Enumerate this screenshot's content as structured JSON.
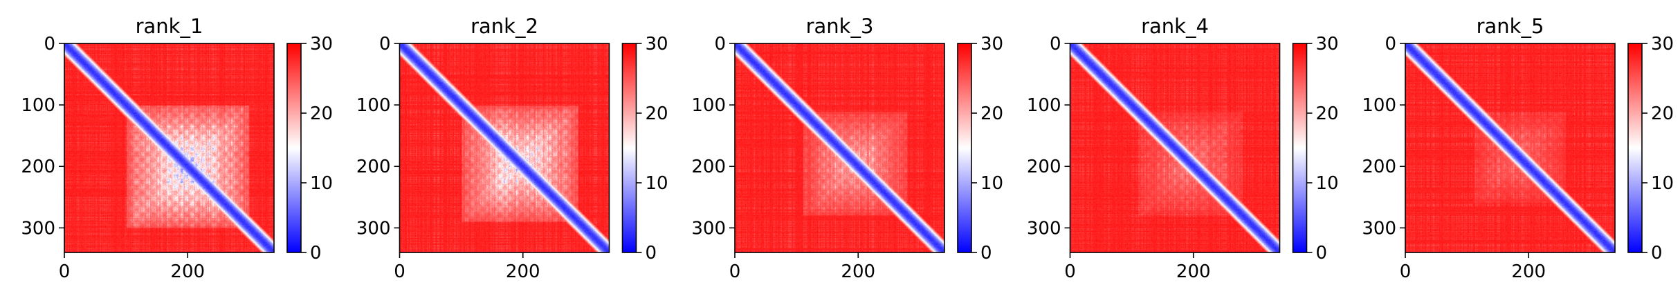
{
  "figure": {
    "colormap": "bwr",
    "colors": {
      "low": "#0000ff",
      "mid": "#ffffff",
      "high": "#ff0000",
      "axes": "#000000"
    }
  },
  "chart_data": [
    {
      "type": "heatmap",
      "title": "rank_1",
      "xlabel": "",
      "ylabel": "",
      "matrix_size": 340,
      "xlim": [
        0,
        340
      ],
      "ylim": [
        340,
        0
      ],
      "x_ticks": [
        0,
        200
      ],
      "y_ticks": [
        0,
        100,
        200,
        300
      ],
      "colorbar": {
        "range": [
          0,
          30
        ],
        "ticks": [
          0,
          10,
          20,
          30
        ]
      },
      "diagonal_value": 2,
      "background_value": 29,
      "blue_region": {
        "x_range": [
          100,
          300
        ],
        "y_range": [
          100,
          300
        ],
        "strength": 1.0
      }
    },
    {
      "type": "heatmap",
      "title": "rank_2",
      "xlabel": "",
      "ylabel": "",
      "matrix_size": 340,
      "xlim": [
        0,
        340
      ],
      "ylim": [
        340,
        0
      ],
      "x_ticks": [
        0,
        200
      ],
      "y_ticks": [
        0,
        100,
        200,
        300
      ],
      "colorbar": {
        "range": [
          0,
          30
        ],
        "ticks": [
          0,
          10,
          20,
          30
        ]
      },
      "diagonal_value": 2,
      "background_value": 29,
      "blue_region": {
        "x_range": [
          100,
          290
        ],
        "y_range": [
          100,
          290
        ],
        "strength": 0.9
      }
    },
    {
      "type": "heatmap",
      "title": "rank_3",
      "xlabel": "",
      "ylabel": "",
      "matrix_size": 340,
      "xlim": [
        0,
        340
      ],
      "ylim": [
        340,
        0
      ],
      "x_ticks": [
        0,
        200
      ],
      "y_ticks": [
        0,
        100,
        200,
        300
      ],
      "colorbar": {
        "range": [
          0,
          30
        ],
        "ticks": [
          0,
          10,
          20,
          30
        ]
      },
      "diagonal_value": 2,
      "background_value": 29,
      "blue_region": {
        "x_range": [
          110,
          280
        ],
        "y_range": [
          110,
          280
        ],
        "strength": 0.55
      }
    },
    {
      "type": "heatmap",
      "title": "rank_4",
      "xlabel": "",
      "ylabel": "",
      "matrix_size": 340,
      "xlim": [
        0,
        340
      ],
      "ylim": [
        340,
        0
      ],
      "x_ticks": [
        0,
        200
      ],
      "y_ticks": [
        0,
        100,
        200,
        300
      ],
      "colorbar": {
        "range": [
          0,
          30
        ],
        "ticks": [
          0,
          10,
          20,
          30
        ]
      },
      "diagonal_value": 2,
      "background_value": 29,
      "blue_region": {
        "x_range": [
          110,
          280
        ],
        "y_range": [
          110,
          280
        ],
        "strength": 0.35
      }
    },
    {
      "type": "heatmap",
      "title": "rank_5",
      "xlabel": "",
      "ylabel": "",
      "matrix_size": 340,
      "xlim": [
        0,
        340
      ],
      "ylim": [
        340,
        0
      ],
      "x_ticks": [
        0,
        200
      ],
      "y_ticks": [
        0,
        100,
        200,
        300
      ],
      "colorbar": {
        "range": [
          0,
          30
        ],
        "ticks": [
          0,
          10,
          20,
          30
        ]
      },
      "diagonal_value": 2,
      "background_value": 29,
      "blue_region": {
        "x_range": [
          110,
          260
        ],
        "y_range": [
          110,
          260
        ],
        "strength": 0.3
      }
    }
  ]
}
